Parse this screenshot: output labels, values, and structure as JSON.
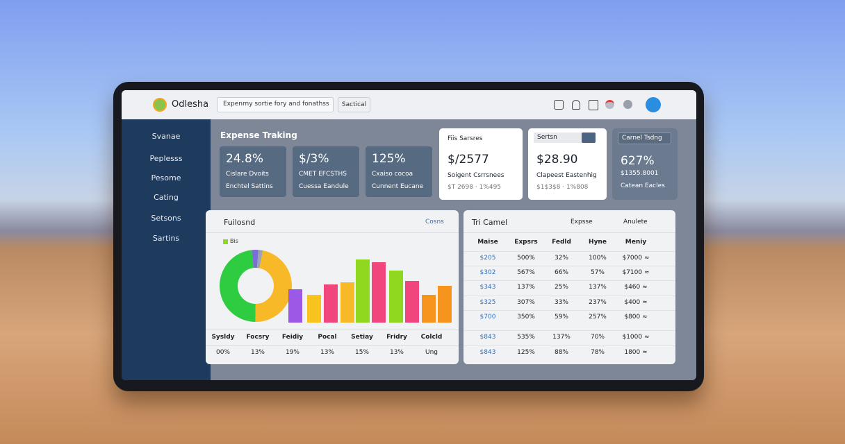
{
  "header": {
    "logo": "Odlesha",
    "search": "Expenrny sortie fory and fonathss",
    "button": "Sactical"
  },
  "sidebar": [
    "Svanae",
    "Peplesss",
    "Pesome",
    "Cating",
    "Setsons",
    "Sartins"
  ],
  "section_title": "Expense Traking",
  "stat_cards": [
    {
      "value": "24.8%",
      "line1": "Cislare Dvoits",
      "line2": "Enchtel Sattins"
    },
    {
      "value": "$/3%",
      "line1": "CMET EFCSTHS",
      "line2": "Cuessa Eandule"
    },
    {
      "value": "125%",
      "line1": "Cxaiso cocoa",
      "line2": "Cunnent Eucane"
    }
  ],
  "white_cards": [
    {
      "label": "Fiis Sarsres",
      "value": "$/2577",
      "line1": "Soigent Csrrsnees",
      "line2": "$T 2698 · 1%495"
    },
    {
      "label": "Sertsn",
      "value": "$28.90",
      "line1": "Clapeest Eastenhig",
      "line2": "$1$3$8 · 1%808"
    },
    {
      "label": "Carnel Tsdng",
      "value": "627%",
      "line1": "$1355.8001",
      "line2": "Catean Eacles"
    }
  ],
  "left_panel": {
    "title": "Fuilosnd",
    "dropdown": "Cosns",
    "legend": "Bis",
    "donut": {
      "values": [
        47,
        48,
        3,
        2
      ],
      "colors": [
        "#f7b928",
        "#2ecc40",
        "#7b6fd6",
        "#9aa3b0"
      ]
    },
    "bars": {
      "values": [
        48,
        40,
        55,
        58,
        91,
        87,
        75,
        60,
        40,
        53
      ],
      "colors": [
        "#9b59e6",
        "#f7c31c",
        "#f0457d",
        "#f7b928",
        "#8fd81f",
        "#f0457d",
        "#8fd81f",
        "#f0457d",
        "#f7941d",
        "#f7941d"
      ]
    },
    "table": {
      "headers": [
        "Sysldy",
        "Focsry",
        "Feidiy",
        "Pocal",
        "Setiay",
        "Fridry",
        "Colcld"
      ],
      "row": [
        "00%",
        "13%",
        "19%",
        "13%",
        "15%",
        "13%",
        "Ung"
      ]
    }
  },
  "right_panel": {
    "title": "Tri Camel",
    "dropdown1": "Expsse",
    "dropdown2": "Anulete",
    "table": {
      "headers": [
        "Maise",
        "Expsrs",
        "Fedld",
        "Hyne",
        "Meniy"
      ],
      "rows": [
        [
          "$205",
          "500%",
          "32%",
          "100%",
          "$7000 ≈"
        ],
        [
          "$302",
          "567%",
          "66%",
          "57%",
          "$7100 ≈"
        ],
        [
          "$343",
          "137%",
          "25%",
          "137%",
          "$460 ≈"
        ],
        [
          "$325",
          "307%",
          "33%",
          "237%",
          "$400 ≈"
        ],
        [
          "$700",
          "350%",
          "59%",
          "257%",
          "$800 ≈"
        ],
        [
          "$843",
          "535%",
          "137%",
          "70%",
          "$1000 ≈"
        ],
        [
          "$843",
          "125%",
          "88%",
          "78%",
          "1800 ≈"
        ]
      ]
    }
  }
}
